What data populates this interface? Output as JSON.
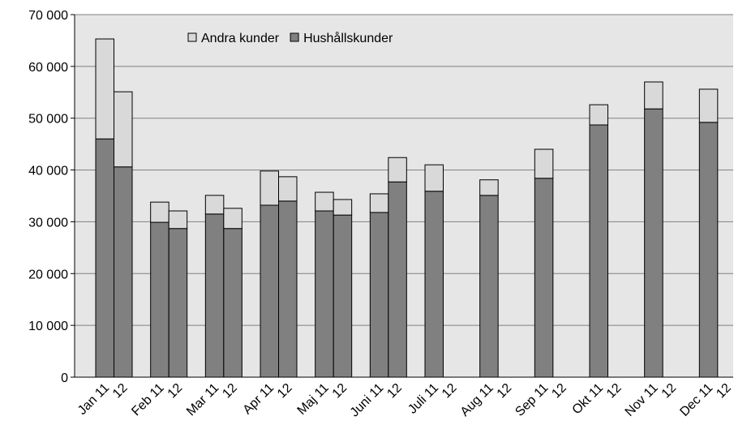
{
  "chart_data": {
    "type": "stacked-bar",
    "categories": [
      "Jan 11",
      "12",
      "Feb 11",
      "12",
      "Mar 11",
      "12",
      "Apr 11",
      "12",
      "Maj 11",
      "12",
      "Juni 11",
      "12",
      "Juli 11",
      "12",
      "Aug 11",
      "12",
      "Sep 11",
      "12",
      "Okt 11",
      "12",
      "Nov 11",
      "12",
      "Dec 11",
      "12"
    ],
    "series": [
      {
        "name": "Andra kunder",
        "color": "#d9d9d9",
        "values": [
          19300,
          14500,
          3900,
          3400,
          3600,
          3900,
          6600,
          4700,
          3600,
          3000,
          3600,
          4700,
          5100,
          null,
          3000,
          null,
          5600,
          null,
          3900,
          null,
          5200,
          null,
          6400,
          null
        ]
      },
      {
        "name": "Hushållskunder",
        "color": "#808080",
        "values": [
          46000,
          40600,
          29900,
          28700,
          31500,
          28700,
          33200,
          34000,
          32100,
          31300,
          31800,
          37700,
          35900,
          null,
          35100,
          null,
          38400,
          null,
          48700,
          null,
          51800,
          null,
          49200,
          null
        ]
      }
    ],
    "ylim": [
      0,
      70000
    ],
    "yticks": [
      0,
      {
        "value": 10000,
        "label": "10 000"
      },
      {
        "value": 20000,
        "label": "20 000"
      },
      {
        "value": 30000,
        "label": "30 000"
      },
      {
        "value": 40000,
        "label": "40 000"
      },
      {
        "value": 50000,
        "label": "50 000"
      },
      {
        "value": 60000,
        "label": "60 000"
      },
      {
        "value": 70000,
        "label": "70 000"
      }
    ],
    "grid": true,
    "legend": "top"
  }
}
